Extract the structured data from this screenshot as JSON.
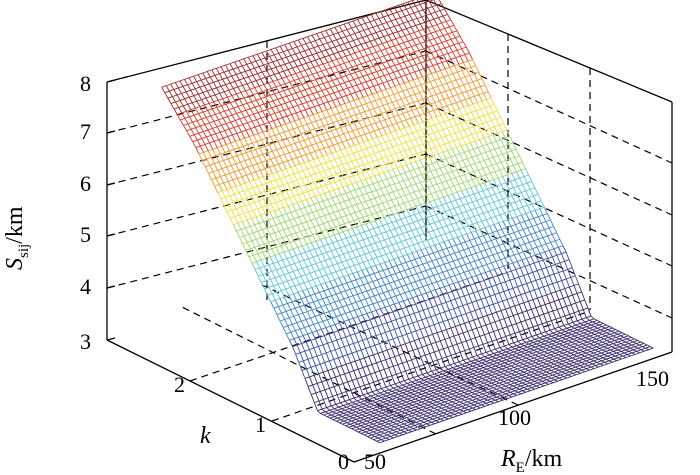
{
  "chart_data": {
    "type": "surface3d",
    "title": "",
    "xlabel": {
      "main": "R",
      "sub": "E",
      "unit": "/km"
    },
    "ylabel": "k",
    "zlabel": {
      "main": "S",
      "sub": "sij",
      "unit": "/km"
    },
    "x_ticks": [
      "50",
      "100",
      "150"
    ],
    "y_ticks": [
      "0",
      "1",
      "2"
    ],
    "z_ticks": [
      "3",
      "4",
      "5",
      "6",
      "7",
      "8"
    ],
    "xlim": [
      50,
      150
    ],
    "ylim": [
      0,
      3
    ],
    "zlim": [
      3,
      8
    ],
    "grid": true,
    "colormap": "parula-like (dark purple low to red high)",
    "colors": [
      "#3b2c6b",
      "#3f4fa0",
      "#3e86c9",
      "#5ec7d8",
      "#9fd86e",
      "#f0e040",
      "#f39a2e",
      "#d83a2a",
      "#9c2b2b"
    ],
    "surface": {
      "description_rows": [
        {
          "k": 0.3,
          "S_sij": 3.0
        },
        {
          "k": 0.6,
          "S_sij": 3.0
        },
        {
          "k": 0.9,
          "S_sij": 3.0
        },
        {
          "k": 1.2,
          "S_sij": 4.0
        },
        {
          "k": 1.6,
          "S_sij": 5.0
        },
        {
          "k": 2.0,
          "S_sij": 6.0
        },
        {
          "k": 2.4,
          "S_sij": 7.0
        },
        {
          "k": 2.8,
          "S_sij": 7.8
        }
      ]
    }
  }
}
